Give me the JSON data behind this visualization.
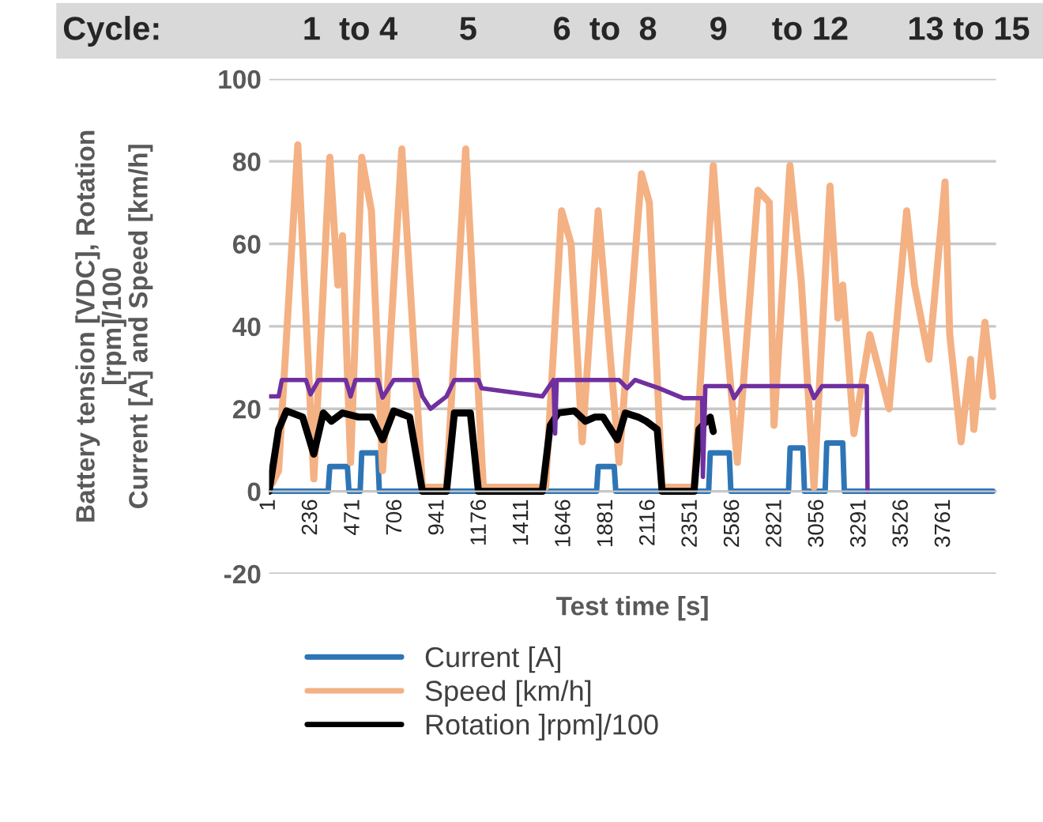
{
  "chart_data": {
    "type": "line",
    "xlabel": "Test time [s]",
    "ylabel": "Battery tension [VDC], Rotation\n[rpm]/100\nCurrent [A] and Speed [km/h]",
    "annotations": [
      "Cycle:",
      "1  to 4",
      "5",
      "6  to  8",
      "9",
      "to 12",
      "13 to 15"
    ],
    "xlim": [
      1,
      4050
    ],
    "xticks": [
      1,
      236,
      471,
      706,
      941,
      1176,
      1411,
      1646,
      1881,
      2116,
      2351,
      2586,
      2821,
      3056,
      3291,
      3526,
      3761
    ],
    "ylim": [
      -20,
      100
    ],
    "yticks": [
      -20,
      0,
      20,
      40,
      60,
      80,
      100
    ],
    "grid": "y",
    "legend": "bottom",
    "marker": "none",
    "line_style": "solid",
    "series": [
      {
        "name": "Current [A]",
        "color": "#2e75b6",
        "x": [
          1,
          330,
          339,
          437,
          446,
          508,
          517,
          606,
          615,
          1825,
          1834,
          1923,
          1932,
          2449,
          2458,
          2564,
          2573,
          2894,
          2903,
          2974,
          2983,
          3098,
          3107,
          3196,
          3205,
          4033
        ],
        "values": [
          0,
          0,
          6,
          6,
          0,
          0,
          9.3,
          9.3,
          0,
          0,
          6,
          6,
          0,
          0,
          9.3,
          9.3,
          0,
          0,
          10.5,
          10.5,
          0,
          0,
          11.7,
          11.7,
          0,
          0
        ]
      },
      {
        "name": "Speed [km/h]",
        "color": "#f4b183",
        "x": [
          19,
          54,
          161,
          250,
          339,
          384,
          410,
          455,
          517,
          571,
          633,
          740,
          855,
          989,
          1096,
          1194,
          1541,
          1630,
          1683,
          1745,
          1834,
          1861,
          1950,
          2075,
          2119,
          2190,
          2368,
          2475,
          2529,
          2609,
          2724,
          2787,
          2813,
          2902,
          2965,
          3036,
          3125,
          3169,
          3196,
          3258,
          3347,
          3454,
          3552,
          3596,
          3676,
          3766,
          3792,
          3855,
          3908,
          3926,
          3988,
          4033
        ],
        "values": [
          2,
          5,
          84,
          3,
          81,
          50,
          62,
          7,
          81,
          68,
          5,
          83,
          1,
          1,
          83,
          1,
          1,
          68,
          60,
          12,
          68,
          54,
          7,
          77,
          70,
          1,
          1,
          79,
          47,
          7,
          73,
          70,
          16,
          79,
          51,
          1,
          74,
          42,
          50,
          14,
          38,
          20,
          68,
          50,
          32,
          75,
          38,
          12,
          32,
          15,
          41,
          23
        ]
      },
      {
        "name": "Rotation ]rpm]/100",
        "color": "#000000",
        "x": [
          1,
          54,
          98,
          188,
          250,
          303,
          348,
          410,
          499,
          571,
          633,
          695,
          784,
          855,
          989,
          1033,
          1122,
          1167,
          1523,
          1567,
          1612,
          1701,
          1763,
          1816,
          1861,
          1941,
          1985,
          2057,
          2101,
          2163,
          2190,
          2368,
          2395,
          2458,
          2475
        ],
        "values": [
          0,
          15,
          19.5,
          18,
          9,
          19,
          17,
          19,
          18,
          18,
          12.5,
          19.5,
          18,
          0,
          0,
          19,
          19,
          0,
          0,
          16,
          19,
          19.5,
          17,
          18,
          18,
          12.5,
          19,
          18,
          17,
          15,
          0,
          0,
          15,
          18,
          14.5
        ]
      },
      {
        "color": "#7030a0",
        "x": [
          1,
          54,
          72,
          206,
          232,
          277,
          428,
          455,
          482,
          607,
          633,
          695,
          829,
          855,
          900,
          989,
          1033,
          1167,
          1185,
          1523,
          1585,
          1594,
          1603,
          1950,
          1995,
          2039,
          2172,
          2306,
          2413,
          2417,
          2431,
          2565,
          2591,
          2636,
          3010,
          3036,
          3081,
          3330,
          3334
        ],
        "values": [
          23,
          23,
          27,
          27,
          23.5,
          27,
          27,
          23,
          27,
          27,
          22.7,
          27,
          27,
          23,
          20,
          23,
          27,
          27,
          25,
          23,
          27,
          14,
          27,
          27,
          25,
          27,
          25,
          22.6,
          22.6,
          3.5,
          25.5,
          25.5,
          22.6,
          25.5,
          25.5,
          22.6,
          25.5,
          25.5,
          0
        ]
      }
    ]
  }
}
